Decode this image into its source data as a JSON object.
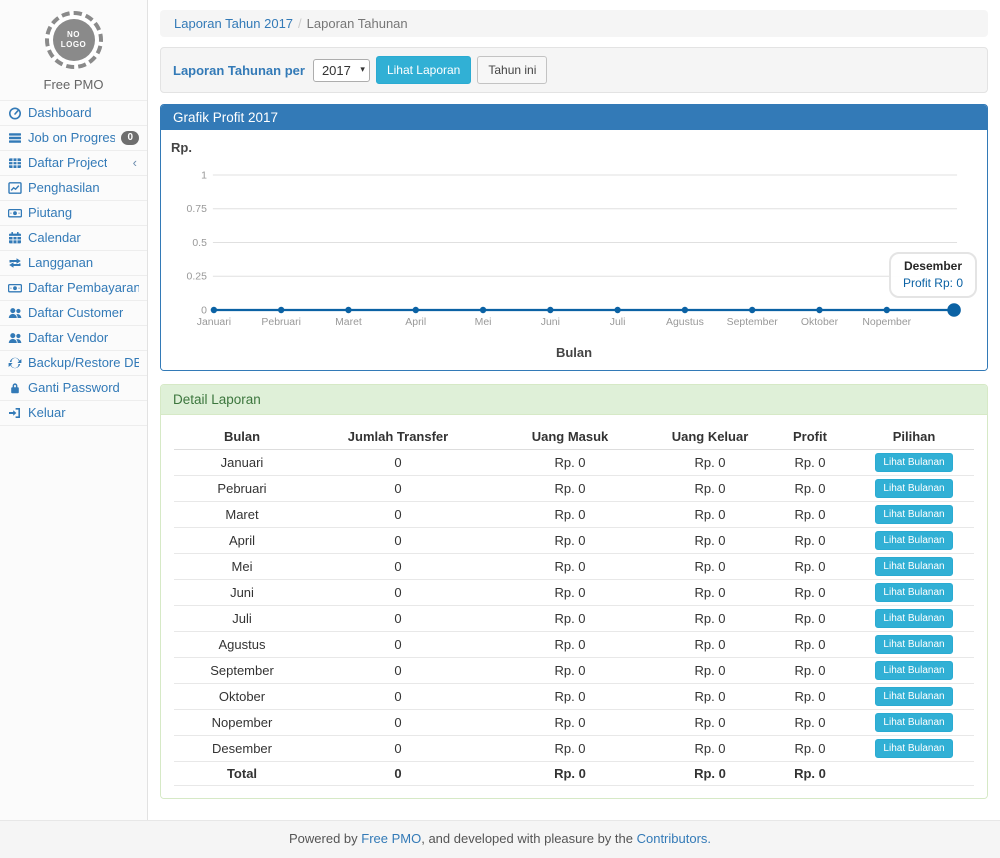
{
  "app": {
    "logo_line1": "NO",
    "logo_line2": "LOGO",
    "brand": "Free PMO"
  },
  "sidebar": {
    "items": [
      {
        "label": "Dashboard",
        "icon": "dashboard"
      },
      {
        "label": "Job on Progress",
        "icon": "tasks",
        "badge": "0"
      },
      {
        "label": "Daftar Project",
        "icon": "table",
        "chevron": "‹"
      },
      {
        "label": "Penghasilan",
        "icon": "line-chart"
      },
      {
        "label": "Piutang",
        "icon": "money"
      },
      {
        "label": "Calendar",
        "icon": "calendar"
      },
      {
        "label": "Langganan",
        "icon": "retweet"
      },
      {
        "label": "Daftar Pembayaran",
        "icon": "money"
      },
      {
        "label": "Daftar Customer",
        "icon": "users"
      },
      {
        "label": "Daftar Vendor",
        "icon": "users"
      },
      {
        "label": "Backup/Restore DB",
        "icon": "refresh"
      },
      {
        "label": "Ganti Password",
        "icon": "lock"
      },
      {
        "label": "Keluar",
        "icon": "sign-out"
      }
    ]
  },
  "breadcrumb": {
    "link": "Laporan Tahun 2017",
    "separator": "/",
    "current": "Laporan Tahunan"
  },
  "filter": {
    "label": "Laporan Tahunan per",
    "year": "2017",
    "submit": "Lihat Laporan",
    "current_year_btn": "Tahun ini"
  },
  "chart_panel": {
    "title": "Grafik Profit 2017"
  },
  "chart_data": {
    "type": "line",
    "title": "Grafik Profit 2017",
    "ylabel": "Rp.",
    "xlabel": "Bulan",
    "x_tick_labels": [
      "Januari",
      "Pebruari",
      "Maret",
      "April",
      "Mei",
      "Juni",
      "Juli",
      "Agustus",
      "September",
      "Oktober",
      "Nopember"
    ],
    "series": [
      {
        "name": "Profit",
        "values": [
          0,
          0,
          0,
          0,
          0,
          0,
          0,
          0,
          0,
          0,
          0,
          0
        ]
      }
    ],
    "ylim": [
      0,
      1
    ],
    "ytick_labels": [
      "1",
      "0.75",
      "0.5",
      "0.25",
      "0"
    ],
    "grid": true,
    "highlight_last_point": true,
    "tooltip": {
      "title": "Desember",
      "value": "Profit Rp: 0"
    },
    "colors": {
      "line": "#0b62a4",
      "grid": "#e0e0e0",
      "tick_text": "#999999"
    }
  },
  "report_panel": {
    "title": "Detail Laporan",
    "table": {
      "headers": [
        "Bulan",
        "Jumlah Transfer",
        "Uang Masuk",
        "Uang Keluar",
        "Profit",
        "Pilihan"
      ],
      "action_label": "Lihat Bulanan",
      "rows": [
        {
          "bulan": "Januari",
          "jumlah_transfer": "0",
          "uang_masuk": "Rp. 0",
          "uang_keluar": "Rp. 0",
          "profit": "Rp. 0"
        },
        {
          "bulan": "Pebruari",
          "jumlah_transfer": "0",
          "uang_masuk": "Rp. 0",
          "uang_keluar": "Rp. 0",
          "profit": "Rp. 0"
        },
        {
          "bulan": "Maret",
          "jumlah_transfer": "0",
          "uang_masuk": "Rp. 0",
          "uang_keluar": "Rp. 0",
          "profit": "Rp. 0"
        },
        {
          "bulan": "April",
          "jumlah_transfer": "0",
          "uang_masuk": "Rp. 0",
          "uang_keluar": "Rp. 0",
          "profit": "Rp. 0"
        },
        {
          "bulan": "Mei",
          "jumlah_transfer": "0",
          "uang_masuk": "Rp. 0",
          "uang_keluar": "Rp. 0",
          "profit": "Rp. 0"
        },
        {
          "bulan": "Juni",
          "jumlah_transfer": "0",
          "uang_masuk": "Rp. 0",
          "uang_keluar": "Rp. 0",
          "profit": "Rp. 0"
        },
        {
          "bulan": "Juli",
          "jumlah_transfer": "0",
          "uang_masuk": "Rp. 0",
          "uang_keluar": "Rp. 0",
          "profit": "Rp. 0"
        },
        {
          "bulan": "Agustus",
          "jumlah_transfer": "0",
          "uang_masuk": "Rp. 0",
          "uang_keluar": "Rp. 0",
          "profit": "Rp. 0"
        },
        {
          "bulan": "September",
          "jumlah_transfer": "0",
          "uang_masuk": "Rp. 0",
          "uang_keluar": "Rp. 0",
          "profit": "Rp. 0"
        },
        {
          "bulan": "Oktober",
          "jumlah_transfer": "0",
          "uang_masuk": "Rp. 0",
          "uang_keluar": "Rp. 0",
          "profit": "Rp. 0"
        },
        {
          "bulan": "Nopember",
          "jumlah_transfer": "0",
          "uang_masuk": "Rp. 0",
          "uang_keluar": "Rp. 0",
          "profit": "Rp. 0"
        },
        {
          "bulan": "Desember",
          "jumlah_transfer": "0",
          "uang_masuk": "Rp. 0",
          "uang_keluar": "Rp. 0",
          "profit": "Rp. 0"
        }
      ],
      "total": {
        "bulan": "Total",
        "jumlah_transfer": "0",
        "uang_masuk": "Rp. 0",
        "uang_keluar": "Rp. 0",
        "profit": "Rp. 0",
        "pilihan": ""
      }
    }
  },
  "footer": {
    "prefix": "Powered by ",
    "link1": "Free PMO",
    "middle": ", and developed with pleasure by the ",
    "link2": "Contributors."
  },
  "colors": {
    "accent_blue": "#337ab7",
    "panel_success_bg": "#dff0d8",
    "panel_success_text": "#3c763d",
    "btn_info": "#31b0d5",
    "chart_line": "#0b62a4"
  }
}
